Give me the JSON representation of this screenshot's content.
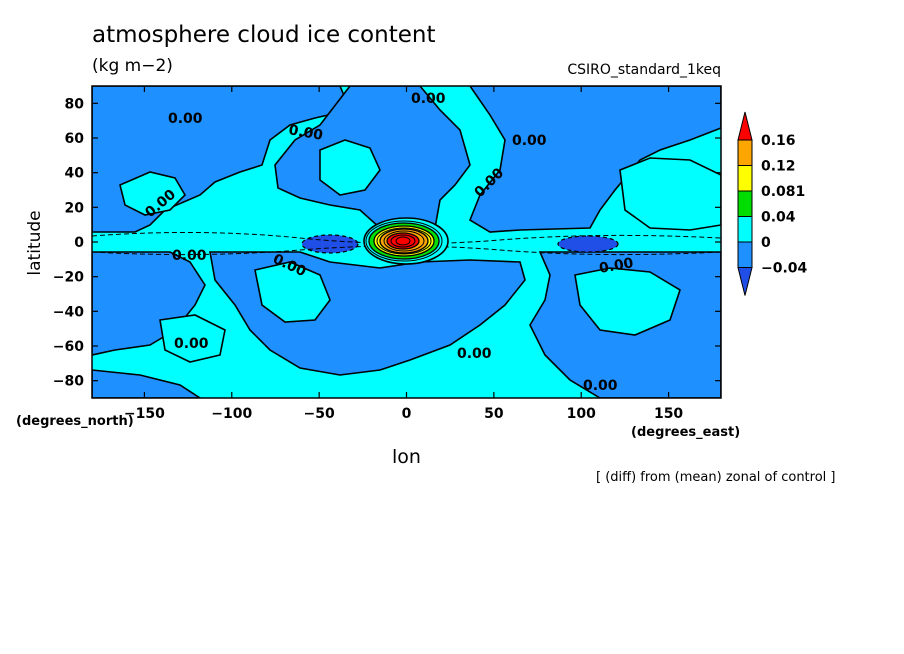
{
  "chart_data": {
    "type": "heatmap",
    "title": "atmosphere cloud ice content",
    "units": "(kg m−2)",
    "run_label": "CSIRO_standard_1keq",
    "xlabel": "lon",
    "ylabel": "latitude",
    "x_unit_label": "(degrees_east)",
    "y_unit_label": "(degrees_north)",
    "footnote": "[ (diff) from (mean) zonal of control ]",
    "xlim": [
      -180,
      180
    ],
    "ylim": [
      -90,
      90
    ],
    "x_ticks": [
      -150,
      -100,
      -50,
      0,
      50,
      100,
      150
    ],
    "y_ticks": [
      80,
      60,
      40,
      20,
      0,
      -20,
      -40,
      -60,
      -80
    ],
    "contour_labels": [
      "0.00",
      "0.00",
      "0.00",
      "0.00",
      "0.00",
      "0.00",
      "0.00",
      "0.00",
      "0.00",
      "0.00",
      "0.00",
      "0.00"
    ],
    "colorbar": {
      "levels": [
        "0.16",
        "0.12",
        "0.081",
        "0.04",
        "0",
        "−0.04"
      ],
      "colors": [
        "#ff0000",
        "#ffa500",
        "#ffff00",
        "#00dd00",
        "#00ffff",
        "#1e90ff",
        "#1f4fe6"
      ]
    },
    "fields": {
      "positive_regions": [
        {
          "lon": 0,
          "lat": 2,
          "peak": 0.16
        },
        {
          "lon": 95,
          "lat": 50,
          "peak": 0.02
        },
        {
          "lon": -120,
          "lat": 45,
          "peak": 0.01
        }
      ],
      "negative_regions": [
        {
          "lon": -45,
          "lat": -2,
          "min": -0.04
        },
        {
          "lon": 105,
          "lat": -2,
          "min": -0.04
        }
      ]
    },
    "colors": {
      "cyan": "#00ffff",
      "blue": "#1e90ff",
      "dark_blue": "#1f4fe6",
      "green": "#00dd00",
      "yellow": "#ffff00",
      "orange": "#ffa500",
      "red": "#ff0000"
    }
  }
}
